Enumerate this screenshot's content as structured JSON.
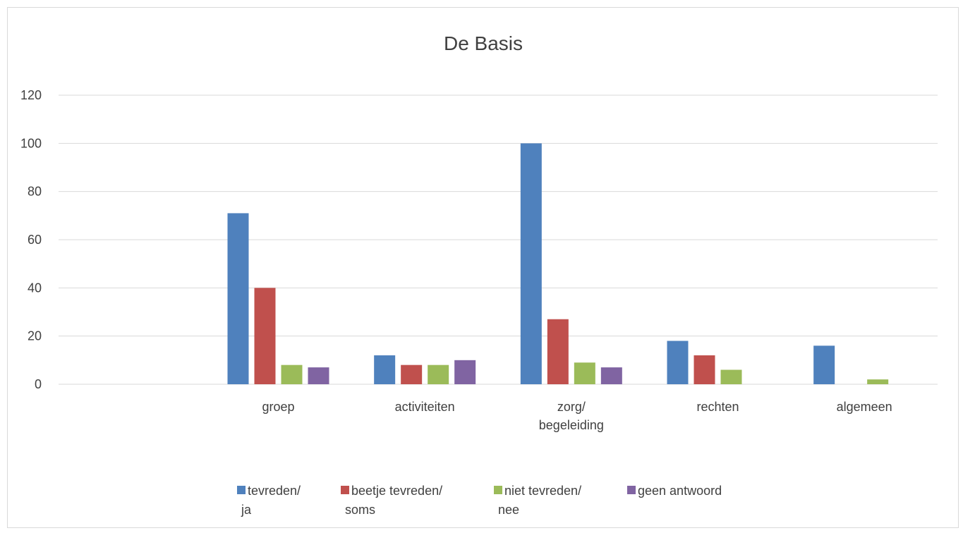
{
  "chart_data": {
    "type": "bar",
    "title": "De Basis",
    "xlabel": "",
    "ylabel": "",
    "ylim": [
      0,
      120
    ],
    "yticks": [
      0,
      20,
      40,
      60,
      80,
      100,
      120
    ],
    "grid": true,
    "legend_position": "bottom",
    "categories": [
      [
        ""
      ],
      [
        "groep"
      ],
      [
        "activiteiten"
      ],
      [
        "zorg/",
        "begeleiding"
      ],
      [
        "rechten"
      ],
      [
        "algemeen"
      ]
    ],
    "series": [
      {
        "name": [
          "tevreden/",
          "ja"
        ],
        "color": "#4f81bd",
        "values": [
          null,
          71,
          12,
          100,
          18,
          16
        ]
      },
      {
        "name": [
          "beetje tevreden/",
          "soms"
        ],
        "color": "#c0504d",
        "values": [
          null,
          40,
          8,
          27,
          12,
          null
        ]
      },
      {
        "name": [
          "niet tevreden/",
          "nee"
        ],
        "color": "#9bbb59",
        "values": [
          null,
          8,
          8,
          9,
          6,
          2
        ]
      },
      {
        "name": [
          "geen antwoord"
        ],
        "color": "#8064a2",
        "values": [
          null,
          7,
          10,
          7,
          null,
          null
        ]
      }
    ]
  },
  "colors": {
    "gridline": "#d9d9d9",
    "text": "#404040",
    "frame": "#d9d9d9"
  }
}
